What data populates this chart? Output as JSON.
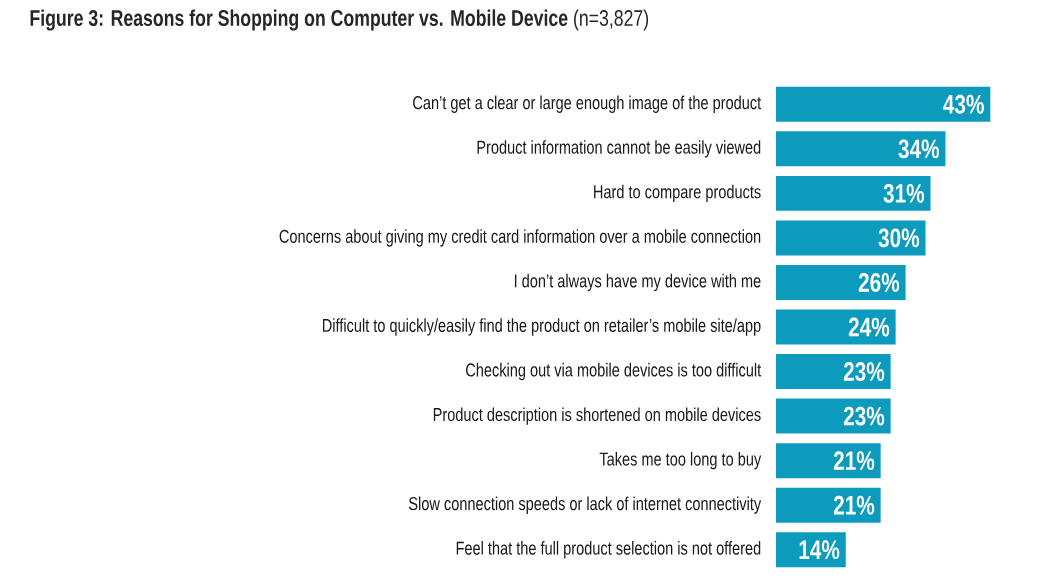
{
  "chart_data": {
    "type": "bar",
    "orientation": "horizontal",
    "title": "**Figure 3: Reasons for Shopping on Computer vs. Mobile Device** (n=3,827)",
    "categories": [
      "Can’t get a clear or large enough image of the product",
      "Product information cannot be easily viewed",
      "Hard to compare products",
      "Concerns about giving my credit card information over a mobile connection",
      "I don’t always have my device with me",
      "Difficult to quickly/easily find the product on retailer’s mobile site/app",
      "Checking out via mobile devices is too difficult",
      "Product description is shortened on mobile devices",
      "Takes me too long to buy",
      "Slow connection speeds or lack of internet connectivity",
      "Feel that the full product selection is not offered"
    ],
    "values": [
      43,
      34,
      31,
      30,
      26,
      24,
      23,
      23,
      21,
      21,
      14
    ],
    "value_labels": [
      "43%",
      "34%",
      "31%",
      "30%",
      "26%",
      "24%",
      "23%",
      "23%",
      "21%",
      "21%",
      "14%"
    ],
    "color": "#0c9bbd"
  }
}
